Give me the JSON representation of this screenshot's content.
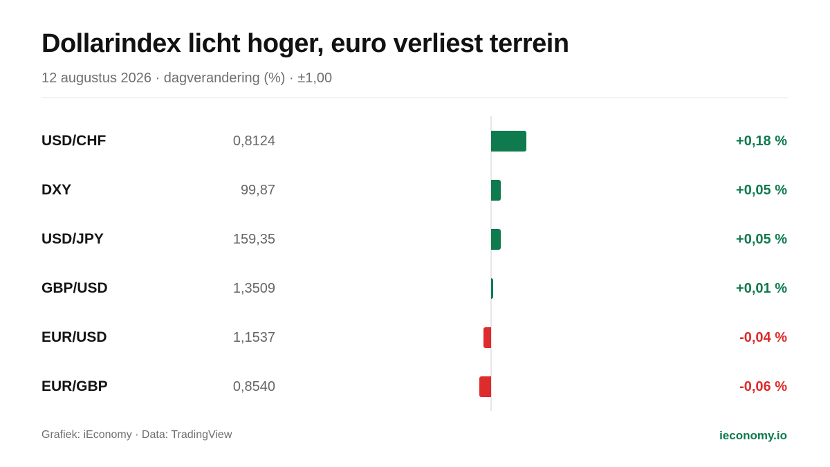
{
  "header": {
    "title": "Dollarindex licht hoger, euro verliest terrein",
    "subtitle": "12 augustus 2026 · dagverandering (%) · ±1,00"
  },
  "footer": {
    "source": "Grafiek: iEconomy · Data: TradingView",
    "brand": "ieconomy.io"
  },
  "colors": {
    "positive": "#0e7a4e",
    "negative": "#de2b2b",
    "brand": "#0e7a4e"
  },
  "chart_data": {
    "type": "bar",
    "orientation": "horizontal",
    "title": "Dollarindex licht hoger, euro verliest terrein",
    "subtitle": "12 augustus 2026 · dagverandering (%) · ±1,00",
    "categories": [
      "USD/CHF",
      "DXY",
      "USD/JPY",
      "GBP/USD",
      "EUR/USD",
      "EUR/GBP"
    ],
    "rates": [
      "0,8124",
      "99,87",
      "159,35",
      "1,3509",
      "1,1537",
      "0,8540"
    ],
    "values": [
      0.18,
      0.05,
      0.05,
      0.01,
      -0.04,
      -0.06
    ],
    "labels": [
      "+0,18 %",
      "+0,05 %",
      "+0,05 %",
      "+0,01 %",
      "-0,04 %",
      "-0,06 %"
    ],
    "xlim": [
      -1.0,
      1.0
    ],
    "grid": false,
    "legend": "none"
  }
}
